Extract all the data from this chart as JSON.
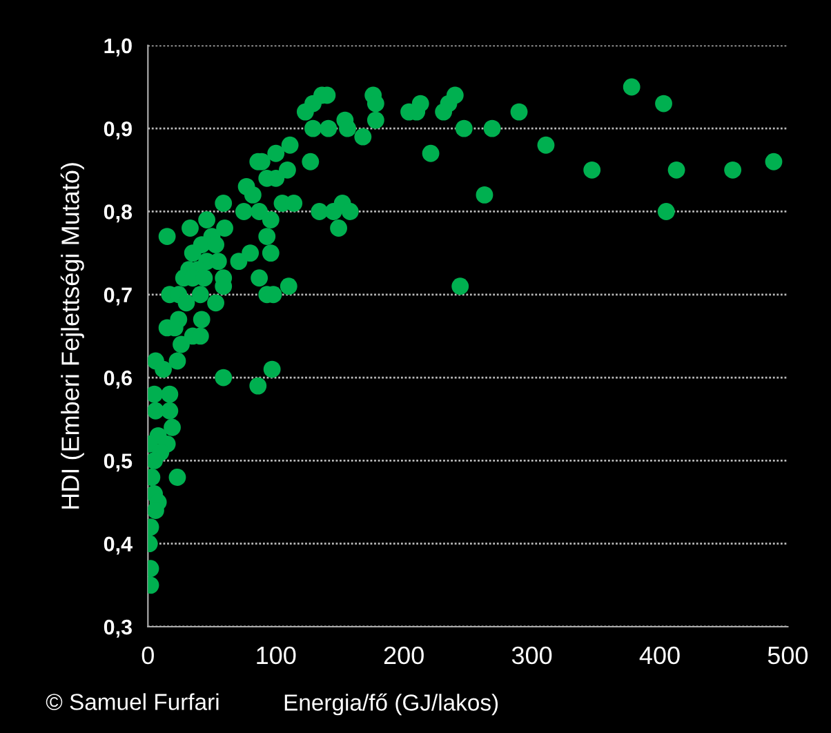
{
  "chart_data": {
    "type": "scatter",
    "xlabel": "Energia/fő (GJ/lakos)",
    "ylabel": "HDI (Emberi Fejlettségi Mutató)",
    "annotations": [
      "© Samuel Furfari"
    ],
    "xlim": [
      0,
      500
    ],
    "xticks": [
      0,
      100,
      200,
      300,
      400,
      500
    ],
    "ylim": [
      0.3,
      1.0
    ],
    "yticks": [
      {
        "value": 0.3,
        "label": "0,3"
      },
      {
        "value": 0.4,
        "label": "0,4"
      },
      {
        "value": 0.5,
        "label": "0,5"
      },
      {
        "value": 0.6,
        "label": "0,6"
      },
      {
        "value": 0.7,
        "label": "0,7"
      },
      {
        "value": 0.8,
        "label": "0,8"
      },
      {
        "value": 0.9,
        "label": "0,9"
      },
      {
        "value": 1.0,
        "label": "1,0"
      }
    ],
    "grid": "y",
    "legend": false,
    "marker": "circle",
    "series": [
      {
        "color": "#00b050",
        "x": [
          136,
          140,
          129,
          123,
          176,
          178,
          178,
          204,
          213,
          210,
          231,
          235,
          240,
          129,
          141,
          154,
          156,
          168,
          127,
          111,
          100,
          109,
          89,
          86,
          93,
          100,
          105,
          114,
          134,
          145,
          152,
          158,
          149,
          77,
          82,
          59,
          75,
          87,
          96,
          46,
          33,
          15,
          50,
          60,
          42,
          35,
          53,
          46,
          55,
          71,
          80,
          93,
          96,
          32,
          39,
          28,
          35,
          44,
          59,
          59,
          87,
          93,
          98,
          110,
          17,
          24,
          30,
          41,
          53,
          24,
          42,
          15,
          21,
          26,
          35,
          41,
          23,
          6,
          12,
          59,
          86,
          97,
          17,
          5,
          17,
          6,
          19,
          8,
          1,
          15,
          10,
          5,
          23,
          3,
          5,
          8,
          6,
          2,
          1,
          2,
          2,
          378,
          403,
          247,
          269,
          290,
          221,
          263,
          311,
          347,
          413,
          457,
          489,
          405,
          244
        ],
        "values": [
          0.94,
          0.94,
          0.93,
          0.92,
          0.94,
          0.93,
          0.91,
          0.92,
          0.93,
          0.92,
          0.92,
          0.93,
          0.94,
          0.9,
          0.9,
          0.91,
          0.9,
          0.89,
          0.86,
          0.88,
          0.87,
          0.85,
          0.86,
          0.86,
          0.84,
          0.84,
          0.81,
          0.81,
          0.8,
          0.8,
          0.81,
          0.8,
          0.78,
          0.83,
          0.82,
          0.81,
          0.8,
          0.8,
          0.79,
          0.79,
          0.78,
          0.77,
          0.77,
          0.78,
          0.76,
          0.75,
          0.76,
          0.74,
          0.74,
          0.74,
          0.75,
          0.77,
          0.75,
          0.73,
          0.73,
          0.72,
          0.72,
          0.72,
          0.72,
          0.71,
          0.72,
          0.7,
          0.7,
          0.71,
          0.7,
          0.7,
          0.69,
          0.7,
          0.69,
          0.67,
          0.67,
          0.66,
          0.66,
          0.64,
          0.65,
          0.65,
          0.62,
          0.62,
          0.61,
          0.6,
          0.59,
          0.61,
          0.58,
          0.58,
          0.56,
          0.56,
          0.54,
          0.53,
          0.52,
          0.52,
          0.51,
          0.5,
          0.48,
          0.48,
          0.46,
          0.45,
          0.44,
          0.42,
          0.4,
          0.37,
          0.35,
          0.95,
          0.93,
          0.9,
          0.9,
          0.92,
          0.87,
          0.82,
          0.88,
          0.85,
          0.85,
          0.85,
          0.86,
          0.8,
          0.71
        ]
      }
    ]
  }
}
